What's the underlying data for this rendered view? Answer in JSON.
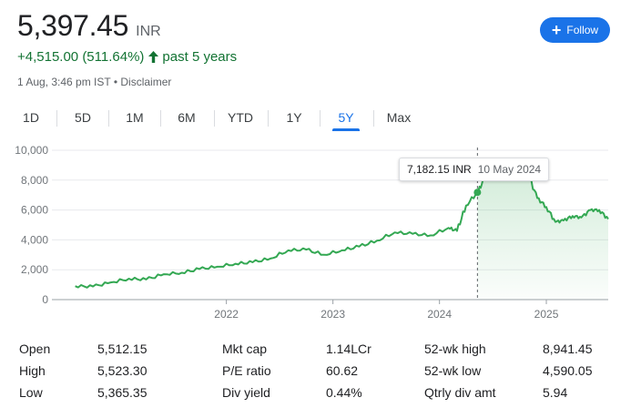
{
  "quote": {
    "price": "5,397.45",
    "currency": "INR",
    "change": "+4,515.00 (511.64%)",
    "period": "past 5 years",
    "meta": "1 Aug, 3:46 pm IST • Disclaimer",
    "colors": {
      "positive": "#137333",
      "accent": "#1a73e8",
      "line": "#34a853"
    }
  },
  "follow": {
    "label": "Follow",
    "icon": "plus-icon"
  },
  "tabs": [
    {
      "label": "1D",
      "active": false
    },
    {
      "label": "5D",
      "active": false
    },
    {
      "label": "1M",
      "active": false
    },
    {
      "label": "6M",
      "active": false
    },
    {
      "label": "YTD",
      "active": false
    },
    {
      "label": "1Y",
      "active": false
    },
    {
      "label": "5Y",
      "active": true
    },
    {
      "label": "Max",
      "active": false
    }
  ],
  "tooltip": {
    "value": "7,182.15 INR",
    "date": "10 May 2024"
  },
  "chart_data": {
    "type": "area",
    "title": "",
    "xlabel": "",
    "ylabel": "",
    "ylim": [
      0,
      10000
    ],
    "y_ticks": [
      "10,000",
      "8,000",
      "6,000",
      "4,000",
      "2,000",
      "0"
    ],
    "x_ticks": [
      "2022",
      "2023",
      "2024",
      "2025"
    ],
    "grid": true,
    "highlight": {
      "x": "2024-05-10",
      "y": 7182.15
    },
    "series": [
      {
        "x": [
          "2020-08-01",
          "2020-10-01",
          "2020-12-01",
          "2021-02-01",
          "2021-04-01",
          "2021-06-01",
          "2021-08-01",
          "2021-10-01",
          "2021-12-01",
          "2022-02-01",
          "2022-04-01",
          "2022-06-01",
          "2022-08-01",
          "2022-10-01",
          "2022-12-01",
          "2023-02-01",
          "2023-04-01",
          "2023-06-01",
          "2023-08-01",
          "2023-10-01",
          "2023-12-01",
          "2024-02-01",
          "2024-03-01",
          "2024-04-01",
          "2024-05-10",
          "2024-06-01",
          "2024-07-01",
          "2024-08-01",
          "2024-09-01",
          "2024-10-01",
          "2024-11-01",
          "2024-12-01",
          "2025-01-01",
          "2025-02-01",
          "2025-03-01",
          "2025-04-01",
          "2025-05-01",
          "2025-06-01",
          "2025-07-01",
          "2025-08-01"
        ],
        "values": [
          900,
          880,
          1150,
          1400,
          1350,
          1700,
          1800,
          2050,
          2200,
          2400,
          2500,
          2750,
          3300,
          3350,
          3000,
          3300,
          3550,
          3950,
          4500,
          4400,
          4300,
          4800,
          4600,
          6300,
          7182.15,
          8000,
          8500,
          8200,
          8400,
          8900,
          8300,
          6800,
          6200,
          5200,
          5300,
          5600,
          5500,
          6000,
          6000,
          5397.45
        ]
      }
    ]
  },
  "stats": {
    "columns": [
      [
        {
          "label": "Open",
          "value": "5,512.15"
        },
        {
          "label": "High",
          "value": "5,523.30"
        },
        {
          "label": "Low",
          "value": "5,365.35"
        }
      ],
      [
        {
          "label": "Mkt cap",
          "value": "1.14LCr"
        },
        {
          "label": "P/E ratio",
          "value": "60.62"
        },
        {
          "label": "Div yield",
          "value": "0.44%"
        }
      ],
      [
        {
          "label": "52-wk high",
          "value": "8,941.45"
        },
        {
          "label": "52-wk low",
          "value": "4,590.05"
        },
        {
          "label": "Qtrly div amt",
          "value": "5.94"
        }
      ]
    ]
  }
}
